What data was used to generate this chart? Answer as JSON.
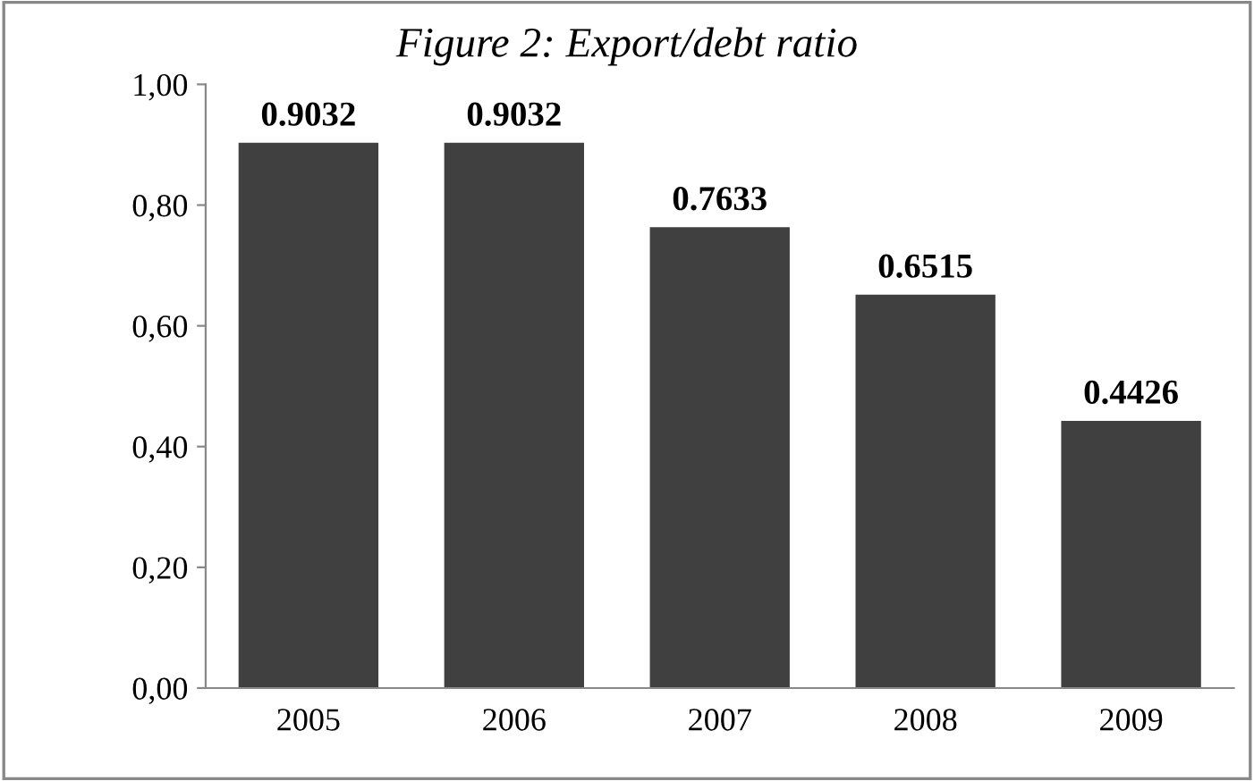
{
  "chart_data": {
    "type": "bar",
    "title": "Figure 2: Export/debt ratio",
    "categories": [
      "2005",
      "2006",
      "2007",
      "2008",
      "2009"
    ],
    "values": [
      0.9032,
      0.9032,
      0.7633,
      0.6515,
      0.4426
    ],
    "color": "#404040",
    "ylim": [
      0,
      1
    ],
    "yticks": [
      {
        "value": 0,
        "label": "0,00"
      },
      {
        "value": 0.2,
        "label": "0,20"
      },
      {
        "value": 0.4,
        "label": "0,40"
      },
      {
        "value": 0.6,
        "label": "0,60"
      },
      {
        "value": 0.8,
        "label": "0,80"
      },
      {
        "value": 1,
        "label": "1,00"
      }
    ],
    "data_labels": true,
    "grid": false,
    "legend": false
  }
}
